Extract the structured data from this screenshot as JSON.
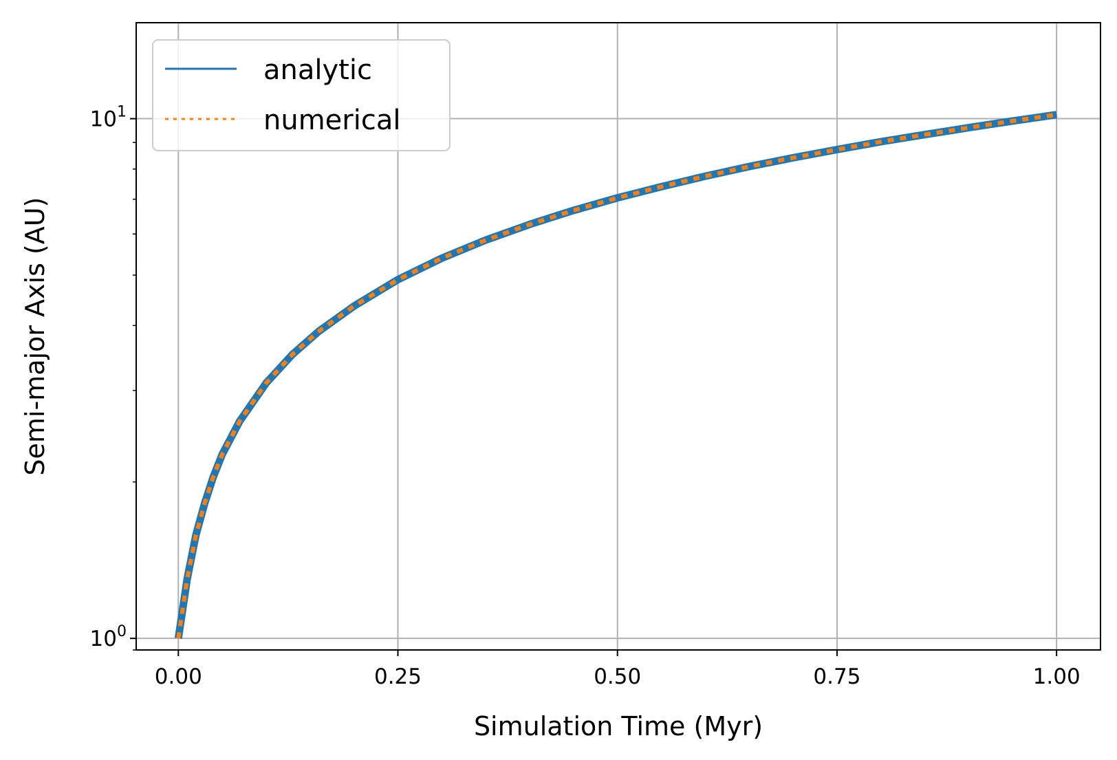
{
  "chart_data": {
    "type": "line",
    "xlabel": "Simulation Time (Myr)",
    "ylabel": "Semi-major Axis (AU)",
    "xlim": [
      -0.048,
      1.05
    ],
    "ylim": [
      0.95,
      15.3
    ],
    "yscale": "log",
    "grid": true,
    "legend_position": "top-left",
    "x_ticks": [
      {
        "value": 0.0,
        "label": "0.00"
      },
      {
        "value": 0.25,
        "label": "0.25"
      },
      {
        "value": 0.5,
        "label": "0.50"
      },
      {
        "value": 0.75,
        "label": "0.75"
      },
      {
        "value": 1.0,
        "label": "1.00"
      }
    ],
    "y_ticks": [
      {
        "value": 1,
        "base": "10",
        "exp": "0"
      },
      {
        "value": 10,
        "base": "10",
        "exp": "1"
      }
    ],
    "y_minor_ticks": [
      2,
      3,
      4,
      5,
      6,
      7,
      8,
      9
    ],
    "x": [
      0,
      0.01,
      0.02,
      0.03,
      0.04,
      0.05,
      0.07,
      0.1,
      0.13,
      0.16,
      0.2,
      0.25,
      0.3,
      0.35,
      0.4,
      0.45,
      0.5,
      0.55,
      0.6,
      0.65,
      0.7,
      0.75,
      0.8,
      0.85,
      0.9,
      0.95,
      1.0
    ],
    "series": [
      {
        "name": "analytic",
        "color": "#1f77b4",
        "style": "solid",
        "values": [
          1.0,
          1.3,
          1.58,
          1.82,
          2.05,
          2.26,
          2.62,
          3.1,
          3.52,
          3.9,
          4.36,
          4.9,
          5.39,
          5.84,
          6.26,
          6.66,
          7.04,
          7.4,
          7.75,
          8.09,
          8.41,
          8.72,
          9.03,
          9.32,
          9.61,
          9.9,
          10.18
        ]
      },
      {
        "name": "numerical",
        "color": "#ff7f0e",
        "style": "dotted",
        "values": [
          1.0,
          1.3,
          1.58,
          1.82,
          2.05,
          2.26,
          2.62,
          3.1,
          3.52,
          3.9,
          4.36,
          4.9,
          5.39,
          5.84,
          6.26,
          6.66,
          7.04,
          7.4,
          7.75,
          8.09,
          8.41,
          8.72,
          9.03,
          9.32,
          9.61,
          9.9,
          10.18
        ]
      }
    ]
  }
}
